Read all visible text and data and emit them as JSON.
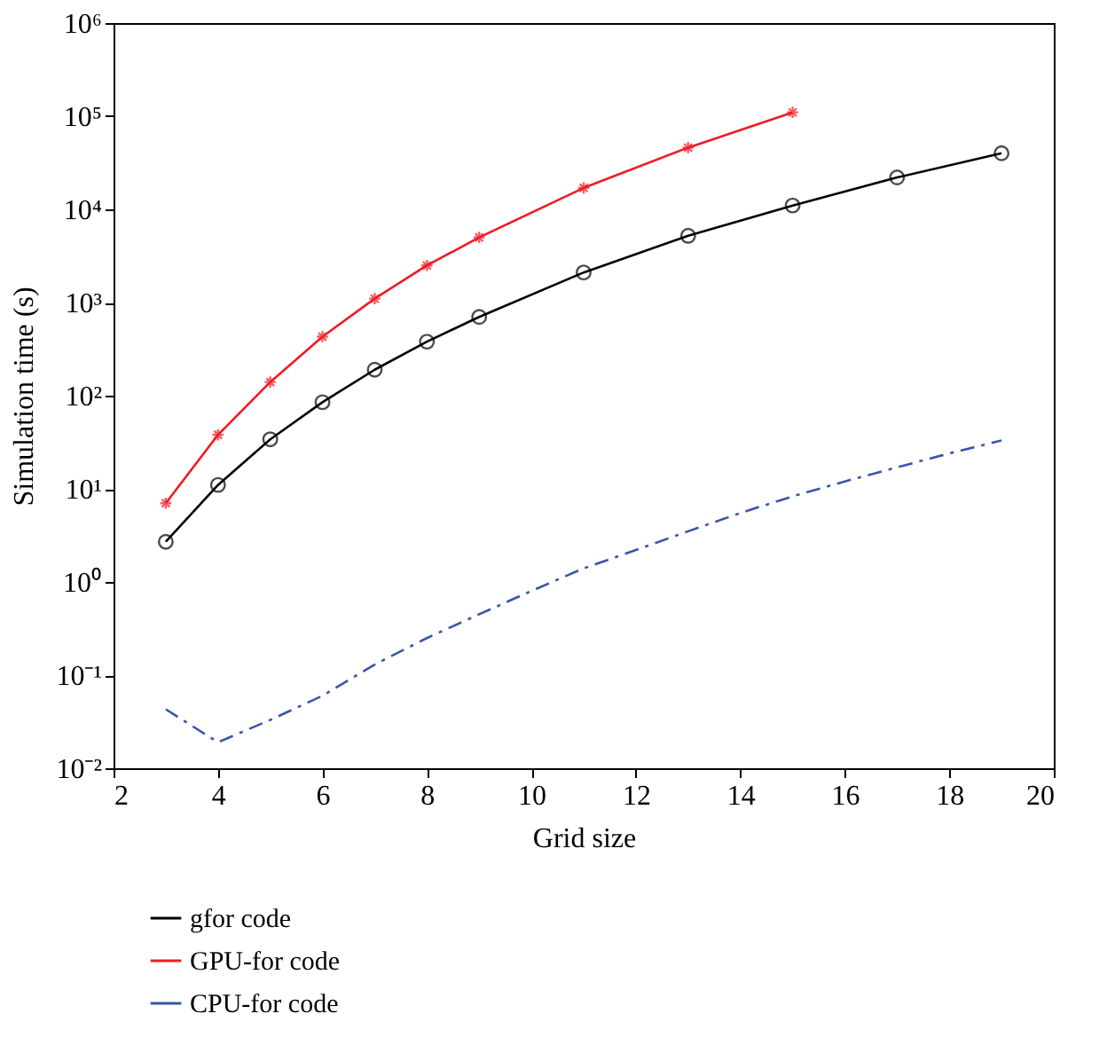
{
  "chart_data": {
    "type": "line",
    "xlabel": "Grid size",
    "ylabel": "Simulation time (s)",
    "xlim": [
      2,
      20
    ],
    "xticks": [
      2,
      4,
      6,
      8,
      10,
      12,
      14,
      16,
      18,
      20
    ],
    "ylim": [
      0.01,
      1000000
    ],
    "log": true,
    "yticks": [
      {
        "value": 0.01,
        "label": "10⁻²"
      },
      {
        "value": 0.1,
        "label": "10⁻¹"
      },
      {
        "value": 1,
        "label": "10⁰"
      },
      {
        "value": 10,
        "label": "10¹"
      },
      {
        "value": 100,
        "label": "10²"
      },
      {
        "value": 1000,
        "label": "10³"
      },
      {
        "value": 10000,
        "label": "10⁴"
      },
      {
        "value": 100000,
        "label": "10⁵"
      },
      {
        "value": 1000000,
        "label": "10⁶"
      }
    ],
    "grid": false,
    "legend": "bottom",
    "series": [
      {
        "name": "gfor code",
        "color": "#000000",
        "marker": "circle",
        "line_style": "solid",
        "x": [
          3,
          4,
          5,
          6,
          7,
          8,
          9,
          11,
          13,
          15,
          17,
          19
        ],
        "values": [
          2.7,
          11,
          34,
          85,
          190,
          380,
          700,
          2100,
          5200,
          11000,
          22000,
          40000
        ]
      },
      {
        "name": "GPU-for code",
        "color": "#ee1c24",
        "marker": "cross",
        "line_style": "solid",
        "x": [
          3,
          4,
          5,
          6,
          7,
          8,
          9,
          11,
          13,
          15
        ],
        "values": [
          7,
          38,
          140,
          430,
          1100,
          2500,
          5000,
          17000,
          46000,
          110000
        ]
      },
      {
        "name": "CPU-for code",
        "color": "#3a55a8",
        "marker": "none",
        "line_style": "dashdot",
        "x": [
          3,
          4,
          5,
          6,
          7,
          8,
          9,
          10,
          11,
          12,
          13,
          14,
          15,
          16,
          17,
          18,
          19
        ],
        "values": [
          0.043,
          0.019,
          0.033,
          0.06,
          0.13,
          0.25,
          0.45,
          0.8,
          1.4,
          2.2,
          3.5,
          5.5,
          8.3,
          12,
          17,
          24,
          33
        ]
      }
    ]
  }
}
